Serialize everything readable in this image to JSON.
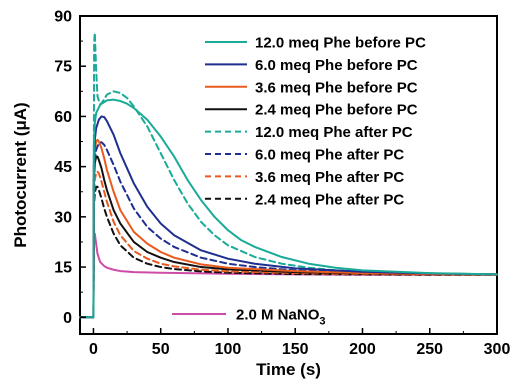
{
  "chart_data": {
    "type": "line",
    "xlabel": "Time (s)",
    "ylabel_prefix": "Photocurrent (",
    "ylabel_unit": "μA",
    "ylabel_suffix": ")",
    "xlim": [
      -10,
      300
    ],
    "ylim": [
      -5,
      90
    ],
    "xticks": [
      0,
      50,
      100,
      150,
      200,
      250,
      300
    ],
    "yticks": [
      0,
      15,
      30,
      45,
      60,
      75,
      90
    ],
    "legend_position": "top-right",
    "series": [
      {
        "name": "12.0 meq Phe before PC",
        "color": "#1aab98",
        "dash": "solid",
        "x": [
          -10,
          0,
          0.3,
          1,
          2,
          5,
          10,
          15,
          20,
          25,
          30,
          40,
          50,
          60,
          70,
          80,
          90,
          100,
          110,
          120,
          140,
          160,
          180,
          200,
          250,
          300
        ],
        "y": [
          0,
          0,
          52,
          58,
          61,
          63.5,
          64.8,
          65,
          64.6,
          63.8,
          62.5,
          59,
          54,
          48,
          41,
          35,
          30,
          26,
          23,
          21,
          18,
          16,
          14.8,
          14,
          13.2,
          12.8
        ]
      },
      {
        "name": "6.0 meq Phe before PC",
        "color": "#1f2f8f",
        "dash": "solid",
        "x": [
          -10,
          0,
          0.3,
          1,
          2,
          4,
          6,
          8,
          10,
          15,
          20,
          30,
          40,
          50,
          60,
          80,
          100,
          120,
          150,
          200,
          250,
          300
        ],
        "y": [
          0,
          0,
          46,
          53,
          56.5,
          59,
          60,
          59.8,
          58.6,
          54.5,
          49,
          40,
          33,
          28,
          24.5,
          20,
          17.5,
          16,
          14.6,
          13.6,
          13.1,
          12.8
        ]
      },
      {
        "name": "3.6 meq Phe before PC",
        "color": "#e85a1e",
        "dash": "solid",
        "x": [
          -10,
          0,
          0.3,
          1,
          2,
          3,
          4,
          6,
          8,
          10,
          15,
          20,
          30,
          40,
          50,
          60,
          80,
          100,
          150,
          200,
          250,
          300
        ],
        "y": [
          0,
          0,
          44,
          50,
          52.5,
          53,
          52.5,
          50.5,
          47.5,
          44,
          37.5,
          32,
          25.5,
          22,
          19.5,
          17.8,
          15.8,
          14.8,
          13.8,
          13.2,
          12.9,
          12.8
        ]
      },
      {
        "name": "2.4 meq Phe before PC",
        "color": "#111111",
        "dash": "solid",
        "x": [
          -10,
          0,
          0.3,
          1,
          2,
          3,
          4,
          6,
          8,
          10,
          15,
          20,
          30,
          40,
          50,
          60,
          80,
          100,
          150,
          200,
          250,
          300
        ],
        "y": [
          0,
          0,
          41,
          46,
          48,
          48,
          47,
          44.5,
          41,
          38,
          32,
          28,
          22.5,
          19.5,
          17.8,
          16.5,
          15,
          14.3,
          13.5,
          13.1,
          12.9,
          12.8
        ]
      },
      {
        "name": "12.0 meq Phe after PC",
        "color": "#1aab98",
        "dash": "dashed",
        "x": [
          -10,
          0,
          0.5,
          1,
          2,
          3,
          5,
          7,
          10,
          15,
          20,
          25,
          30,
          40,
          50,
          60,
          70,
          80,
          90,
          100,
          120,
          140,
          160,
          180,
          200,
          250,
          300
        ],
        "y": [
          0,
          0,
          82,
          85,
          74,
          66,
          63.5,
          64.5,
          66.5,
          67.5,
          67,
          65.5,
          63,
          57,
          49,
          41,
          34,
          28.5,
          24.5,
          21.5,
          18,
          16,
          14.8,
          14,
          13.6,
          13,
          12.8
        ]
      },
      {
        "name": "6.0 meq Phe after PC",
        "color": "#1f2f8f",
        "dash": "dashed",
        "x": [
          -10,
          0,
          0.3,
          1,
          2,
          4,
          6,
          8,
          10,
          15,
          20,
          30,
          40,
          50,
          60,
          80,
          100,
          120,
          150,
          200,
          250,
          300
        ],
        "y": [
          0,
          0,
          41,
          47,
          50,
          52,
          52.3,
          51.5,
          50,
          45.5,
          40.5,
          32.5,
          27,
          23.5,
          21,
          17.8,
          16,
          15,
          14,
          13.3,
          13,
          12.8
        ]
      },
      {
        "name": "3.6 meq Phe after PC",
        "color": "#e85a1e",
        "dash": "dashed",
        "x": [
          -10,
          0,
          0.3,
          1,
          2,
          3,
          4,
          6,
          8,
          10,
          15,
          20,
          30,
          40,
          50,
          60,
          80,
          100,
          150,
          200,
          250,
          300
        ],
        "y": [
          0,
          0,
          36,
          41,
          43,
          43.5,
          43,
          40.5,
          37.5,
          34.5,
          28.5,
          24.5,
          19.8,
          17.5,
          16,
          15.2,
          14.2,
          13.7,
          13.2,
          12.9,
          12.8,
          12.7
        ]
      },
      {
        "name": "2.4 meq Phe after PC",
        "color": "#111111",
        "dash": "dashed",
        "x": [
          -10,
          0,
          0.3,
          1,
          2,
          3,
          4,
          6,
          8,
          10,
          15,
          20,
          30,
          40,
          50,
          60,
          80,
          100,
          150,
          200,
          250,
          300
        ],
        "y": [
          0,
          0,
          33,
          37,
          39,
          39,
          38,
          35.5,
          32.5,
          30,
          25,
          21.5,
          17.8,
          16,
          15,
          14.4,
          13.7,
          13.3,
          12.9,
          12.8,
          12.7,
          12.7
        ]
      },
      {
        "name_prefix": "2.0 M NaNO",
        "name_sub": "3",
        "color": "#cf4ba8",
        "dash": "solid",
        "x": [
          -10,
          0,
          0.3,
          1,
          2,
          3,
          5,
          8,
          10,
          15,
          20,
          30,
          50,
          100,
          150,
          200,
          250,
          300
        ],
        "y": [
          0,
          0,
          23,
          25,
          22,
          19,
          16.5,
          15.3,
          14.8,
          14.2,
          13.8,
          13.5,
          13.3,
          13,
          12.8,
          12.7,
          12.7,
          12.7
        ]
      }
    ]
  }
}
